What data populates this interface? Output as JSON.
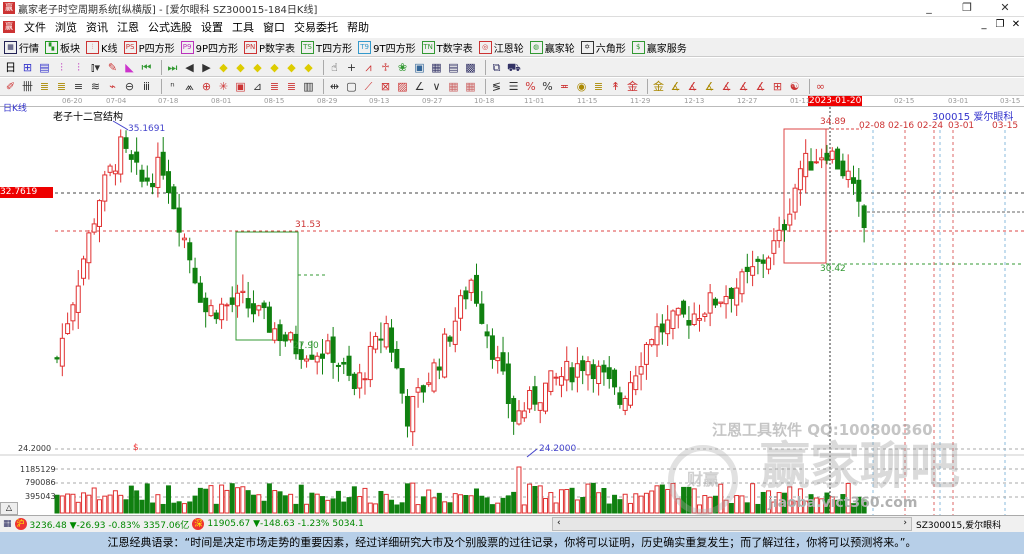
{
  "window": {
    "title": "赢家老子时空周期系统[纵横版] - [爱尔眼科  SZ300015-184日K线]",
    "logo": "赢",
    "controls": [
      "_",
      "❐",
      "✕"
    ]
  },
  "menu": {
    "items": [
      "文件",
      "浏览",
      "资讯",
      "江恩",
      "公式选股",
      "设置",
      "工具",
      "窗口",
      "交易委托",
      "帮助"
    ],
    "mdi": [
      "_",
      "❐",
      "✕"
    ]
  },
  "toolbar1": [
    {
      "label": "行情",
      "icon": "grid-icon",
      "glyph": "▦",
      "color": "#225"
    },
    {
      "label": "板块",
      "icon": "blocks-icon",
      "glyph": "▚",
      "color": "#292"
    },
    {
      "label": "K线",
      "icon": "kline-icon",
      "glyph": "⫶",
      "color": "#c33"
    },
    {
      "label": "P四方形",
      "icon": "ps-icon",
      "glyph": "PS",
      "color": "#c33"
    },
    {
      "label": "9P四方形",
      "icon": "p9-icon",
      "glyph": "P9",
      "color": "#b3b"
    },
    {
      "label": "P数字表",
      "icon": "pn-icon",
      "glyph": "PN",
      "color": "#c33"
    },
    {
      "label": "T四方形",
      "icon": "ts-icon",
      "glyph": "TS",
      "color": "#393"
    },
    {
      "label": "9T四方形",
      "icon": "t9-icon",
      "glyph": "T9",
      "color": "#39c"
    },
    {
      "label": "T数字表",
      "icon": "tn-icon",
      "glyph": "TN",
      "color": "#393"
    },
    {
      "label": "江恩轮",
      "icon": "gann-wheel-icon",
      "glyph": "◎",
      "color": "#c33"
    },
    {
      "label": "赢家轮",
      "icon": "winner-wheel-icon",
      "glyph": "◍",
      "color": "#393"
    },
    {
      "label": "六角形",
      "icon": "hexagon-icon",
      "glyph": "✡",
      "color": "#333"
    },
    {
      "label": "赢家服务",
      "icon": "service-icon",
      "glyph": "$",
      "color": "#393"
    }
  ],
  "toolbar2": [
    {
      "icon": "day-period-icon",
      "glyph": "日▾",
      "color": "#000"
    },
    {
      "icon": "zoom-chart-icon",
      "glyph": "⊞",
      "color": "#33c"
    },
    {
      "icon": "doc-icon",
      "glyph": "▤",
      "color": "#33c"
    },
    {
      "icon": "kline-a-icon",
      "glyph": "⫶",
      "color": "#b3b"
    },
    {
      "icon": "kline-b-icon",
      "glyph": "⫶",
      "color": "#b3b"
    },
    {
      "icon": "bar-type-icon",
      "glyph": "⫾▾",
      "color": "#333"
    },
    {
      "icon": "draw-icon",
      "glyph": "✎",
      "color": "#c33"
    },
    {
      "icon": "color-tri-icon",
      "glyph": "◣",
      "color": "#c3c"
    },
    {
      "icon": "first-icon",
      "glyph": "⏮",
      "color": "#393"
    },
    {
      "icon": "last-icon",
      "glyph": "⏭",
      "color": "#393"
    },
    {
      "icon": "prev-icon",
      "glyph": "◀",
      "color": "#333"
    },
    {
      "icon": "next-icon",
      "glyph": "▶",
      "color": "#333"
    },
    {
      "icon": "diamond-up-icon",
      "glyph": "◆",
      "color": "#dc0"
    },
    {
      "icon": "diamond-down-icon",
      "glyph": "◆",
      "color": "#dc0"
    },
    {
      "icon": "diamond-left-icon",
      "glyph": "◆",
      "color": "#dc0"
    },
    {
      "icon": "diamond-right-icon",
      "glyph": "◆",
      "color": "#dc0"
    },
    {
      "icon": "diamond-in-icon",
      "glyph": "◆",
      "color": "#dc0"
    },
    {
      "icon": "diamond-out-icon",
      "glyph": "◆",
      "color": "#dc0"
    },
    {
      "icon": "hand-icon",
      "glyph": "☝",
      "color": "#333"
    },
    {
      "icon": "crosshair-icon",
      "glyph": "+",
      "color": "#333"
    },
    {
      "icon": "pattern-icon",
      "glyph": "⩘",
      "color": "#c33"
    },
    {
      "icon": "lock-icon",
      "glyph": "♱",
      "color": "#c33"
    },
    {
      "icon": "calc-icon",
      "glyph": "❀",
      "color": "#393"
    },
    {
      "icon": "calendar-icon",
      "glyph": "▣",
      "color": "#369"
    },
    {
      "icon": "calculator-icon",
      "glyph": "▦",
      "color": "#336"
    },
    {
      "icon": "list-icon",
      "glyph": "▤",
      "color": "#336"
    },
    {
      "icon": "save-icon",
      "glyph": "▩",
      "color": "#336"
    },
    {
      "icon": "network-icon",
      "glyph": "⧉",
      "color": "#336"
    },
    {
      "icon": "trade-icon",
      "glyph": "⛟",
      "color": "#336"
    }
  ],
  "toolbar3": [
    {
      "icon": "pen-icon",
      "glyph": "✐",
      "color": "#c33"
    },
    {
      "icon": "lines-icon",
      "glyph": "卌",
      "color": "#333"
    },
    {
      "icon": "fib-a-icon",
      "glyph": "≣",
      "color": "#a80"
    },
    {
      "icon": "fib-b-icon",
      "glyph": "≣",
      "color": "#a80"
    },
    {
      "icon": "fib-c-icon",
      "glyph": "≡",
      "color": "#333"
    },
    {
      "icon": "fib-d-icon",
      "glyph": "≋",
      "color": "#333"
    },
    {
      "icon": "ruler-icon",
      "glyph": "⌁",
      "color": "#c33"
    },
    {
      "icon": "circle-icon",
      "glyph": "⊖",
      "color": "#333"
    },
    {
      "icon": "cycle-icon",
      "glyph": "ⅲ",
      "color": "#333"
    },
    {
      "icon": "n2-icon",
      "glyph": "ⁿ",
      "color": "#333"
    },
    {
      "icon": "fan-icon",
      "glyph": "⩕",
      "color": "#333"
    },
    {
      "icon": "target-icon",
      "glyph": "⊕",
      "color": "#c33"
    },
    {
      "icon": "star-icon",
      "glyph": "✳",
      "color": "#c33"
    },
    {
      "icon": "box-icon",
      "glyph": "▣",
      "color": "#c33"
    },
    {
      "icon": "angle-icon",
      "glyph": "⊿",
      "color": "#333"
    },
    {
      "icon": "red-fib-icon",
      "glyph": "≣",
      "color": "#c33"
    },
    {
      "icon": "red-fib2-icon",
      "glyph": "≣",
      "color": "#c33"
    },
    {
      "icon": "grid-lines-icon",
      "glyph": "▥",
      "color": "#333"
    },
    {
      "icon": "span-icon",
      "glyph": "⇹",
      "color": "#333"
    },
    {
      "icon": "rect-icon",
      "glyph": "▢",
      "color": "#333"
    },
    {
      "icon": "gann-fan-icon",
      "glyph": "⟋",
      "color": "#c33"
    },
    {
      "icon": "gann-box-icon",
      "glyph": "⊠",
      "color": "#c33"
    },
    {
      "icon": "gann-grid-icon",
      "glyph": "▨",
      "color": "#c33"
    },
    {
      "icon": "angle-line-icon",
      "glyph": "∠",
      "color": "#333"
    },
    {
      "icon": "v-icon",
      "glyph": "∨",
      "color": "#333"
    },
    {
      "icon": "table-icon",
      "glyph": "▦",
      "color": "#c66"
    },
    {
      "icon": "table2-icon",
      "glyph": "▦",
      "color": "#c66"
    },
    {
      "icon": "wave-lines-icon",
      "glyph": "≶",
      "color": "#333"
    },
    {
      "icon": "bars-icon",
      "glyph": "☰",
      "color": "#333"
    },
    {
      "icon": "pct-red-icon",
      "glyph": "%",
      "color": "#c33"
    },
    {
      "icon": "percent-icon",
      "glyph": "%",
      "color": "#333"
    },
    {
      "icon": "pct-line-icon",
      "glyph": "≖",
      "color": "#c33"
    },
    {
      "icon": "coin-icon",
      "glyph": "◉",
      "color": "#a80"
    },
    {
      "icon": "gold-line-icon",
      "glyph": "≣",
      "color": "#a80"
    },
    {
      "icon": "arrow-up-icon",
      "glyph": "↟",
      "color": "#c33"
    },
    {
      "icon": "gold-a-icon",
      "glyph": "金",
      "color": "#c33"
    },
    {
      "icon": "gold-b-icon",
      "glyph": "金",
      "color": "#a80"
    },
    {
      "icon": "angle-a-icon",
      "glyph": "∡",
      "color": "#a80"
    },
    {
      "icon": "angle-f-icon",
      "glyph": "∡",
      "color": "#c33"
    },
    {
      "icon": "angle-b-icon",
      "glyph": "∡",
      "color": "#a80"
    },
    {
      "icon": "angle-c-icon",
      "glyph": "∡",
      "color": "#c33"
    },
    {
      "icon": "angle-d-icon",
      "glyph": "∡",
      "color": "#c33"
    },
    {
      "icon": "angle-e-icon",
      "glyph": "∡",
      "color": "#c33"
    },
    {
      "icon": "grid-red-icon",
      "glyph": "⊞",
      "color": "#c33"
    },
    {
      "icon": "taichi-icon",
      "glyph": "☯",
      "color": "#c33"
    },
    {
      "icon": "wave-icon",
      "glyph": "∞",
      "color": "#c33"
    }
  ],
  "dateaxis": {
    "ticks": [
      "06-20",
      "07-04",
      "07-18",
      "08-01",
      "08-15",
      "08-29",
      "09-13",
      "09-27",
      "10-18",
      "11-01",
      "11-15",
      "11-29",
      "12-13",
      "12-27",
      "01-11",
      "02-15",
      "03-01",
      "03-15"
    ],
    "highlight": "2023-01-20"
  },
  "chart": {
    "period_label": "日K线",
    "indicator_label": "老子十二宫结构",
    "stock": "300015 爱尔眼科",
    "current_price_label": "32.7619",
    "high_label": "35.1691",
    "low_label": "24.2000",
    "box1_top": "31.53",
    "box1_bottom": "27.90",
    "box2_top": "34.89",
    "box2_bottom": "30.42",
    "future_dates": [
      "02-08",
      "02-16",
      "02-24",
      "03-01",
      "03-15"
    ],
    "price_path": [
      [
        0,
        26.8
      ],
      [
        8,
        32.5
      ],
      [
        12,
        34.2
      ],
      [
        16,
        33.0
      ],
      [
        20,
        33.6
      ],
      [
        28,
        28.5
      ],
      [
        35,
        28.8
      ],
      [
        45,
        27.2
      ],
      [
        52,
        27.0
      ],
      [
        56,
        25.7
      ],
      [
        62,
        28.0
      ],
      [
        66,
        24.8
      ],
      [
        72,
        26.8
      ],
      [
        78,
        29.6
      ],
      [
        82,
        27.2
      ],
      [
        86,
        24.7
      ],
      [
        92,
        25.8
      ],
      [
        100,
        26.8
      ],
      [
        106,
        25.3
      ],
      [
        112,
        27.7
      ],
      [
        120,
        28.4
      ],
      [
        130,
        29.6
      ],
      [
        136,
        31.0
      ],
      [
        140,
        33.5
      ],
      [
        145,
        34.2
      ],
      [
        149,
        33.2
      ],
      [
        152,
        31.4
      ]
    ],
    "up_color": "#e03030",
    "down_color": "#108010"
  },
  "volume": {
    "axis": [
      "24.2000",
      "1185129",
      "790086",
      "395043"
    ],
    "marker": "$"
  },
  "watermark": {
    "line1": "江恩工具软件  QQ:100800360",
    "brand": "赢家聊吧",
    "logo": "财赢",
    "url": "jiaoba.vict360.com"
  },
  "status": {
    "sh_badge": "沪",
    "sh": "3236.48 ▼-26.93 -0.83% 3357.06亿",
    "sz_badge": "深",
    "sz": "11905.67 ▼-148.63 -1.23% 5034.1",
    "stock": "SZ300015,爱尔眼科"
  },
  "quote": "江恩经典语录：“时间是决定市场走势的重要因素，经过详细研究大市及个别股票的过往记录，你将可以证明，历史确实重复发生；而了解过往，你将可以预测将来。”。"
}
